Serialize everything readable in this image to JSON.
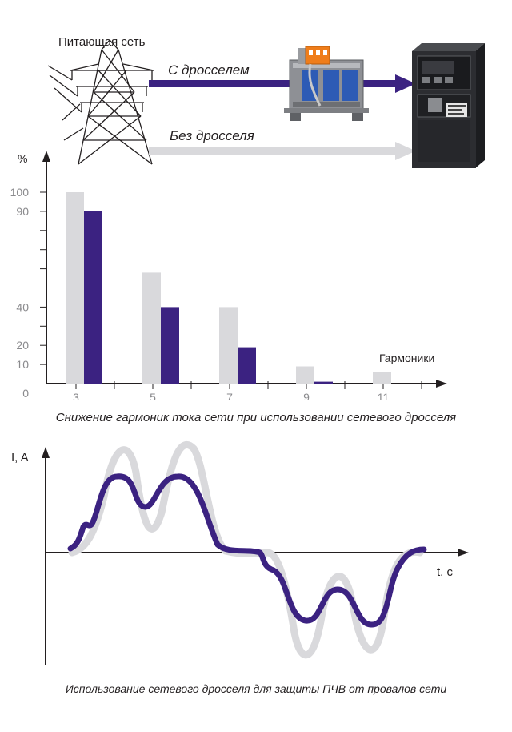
{
  "supply": {
    "network_label": "Питающая сеть",
    "with_choke_label": "С дросселем",
    "without_choke_label": "Без дросселя"
  },
  "colors": {
    "with_choke": "#3b2281",
    "without_choke": "#d9d9dc",
    "axis": "#231f20",
    "tick_text": "#8a8a8d"
  },
  "icons": [
    "power-line-tower-icon",
    "reactor-choke-icon",
    "frequency-converter-icon"
  ],
  "harmonics_chart": {
    "caption": "Снижение гармоник тока сети при использовании сетевого дросселя",
    "ylabel": "%",
    "xlabel": "Гармоники",
    "ytick_labels": [
      "0",
      "10",
      "20",
      "40",
      "90",
      "100"
    ]
  },
  "waveform_chart": {
    "caption": "Использование сетевого дросселя для защиты ПЧВ от провалов сети",
    "ylabel": "I, A",
    "xlabel": "t, c"
  },
  "chart_data": {
    "type": "bar",
    "categories": [
      "3",
      "5",
      "7",
      "9",
      "11"
    ],
    "series": [
      {
        "name": "Без дросселя",
        "values": [
          100,
          58,
          40,
          9,
          6
        ]
      },
      {
        "name": "С дросселем",
        "values": [
          90,
          40,
          19,
          1,
          0
        ]
      }
    ],
    "xlabel": "Гармоники",
    "ylabel": "%",
    "ylim": [
      0,
      100
    ],
    "yticks": [
      0,
      10,
      20,
      40,
      90,
      100
    ],
    "grid": false,
    "legend": "none"
  }
}
